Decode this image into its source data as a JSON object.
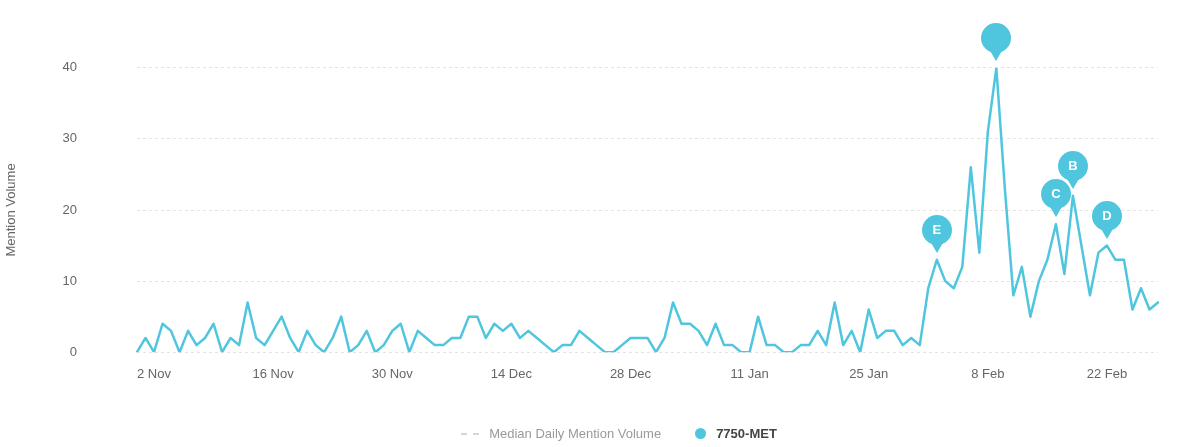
{
  "chart_data": {
    "type": "line",
    "ylabel": "Mention Volume",
    "legend": "bottom",
    "grid": "y",
    "line_style": "solid",
    "categories": [
      null,
      null,
      "2 Nov",
      null,
      null,
      null,
      null,
      null,
      null,
      null,
      null,
      null,
      null,
      null,
      null,
      null,
      "16 Nov",
      null,
      null,
      null,
      null,
      null,
      null,
      null,
      null,
      null,
      null,
      null,
      null,
      null,
      "30 Nov",
      null,
      null,
      null,
      null,
      null,
      null,
      null,
      null,
      null,
      null,
      null,
      null,
      null,
      "14 Dec",
      null,
      null,
      null,
      null,
      null,
      null,
      null,
      null,
      null,
      null,
      null,
      null,
      null,
      "28 Dec",
      null,
      null,
      null,
      null,
      null,
      null,
      null,
      null,
      null,
      null,
      null,
      null,
      null,
      "11 Jan",
      null,
      null,
      null,
      null,
      null,
      null,
      null,
      null,
      null,
      null,
      null,
      null,
      null,
      "25 Jan",
      null,
      null,
      null,
      null,
      null,
      null,
      null,
      null,
      null,
      null,
      null,
      null,
      null,
      "8 Feb",
      null,
      null,
      null,
      null,
      null,
      null,
      null,
      null,
      null,
      null,
      null,
      null,
      null,
      "22 Feb",
      null,
      null,
      null,
      null,
      null,
      null
    ],
    "ylim": [
      0,
      40
    ],
    "yticks": [
      0,
      10,
      20,
      30,
      40
    ],
    "series": [
      {
        "name": "Median Daily Mention Volume",
        "color": "#d6d6d6",
        "line_style": "dashed",
        "values": [
          null,
          null,
          null,
          null,
          null,
          null,
          null,
          null,
          null,
          null,
          null,
          null,
          null,
          null,
          null,
          null,
          null,
          null,
          null,
          null,
          null,
          null,
          null,
          null,
          null,
          null,
          null,
          null,
          null,
          null,
          null,
          null,
          null,
          null,
          null,
          null,
          null,
          null,
          null,
          null,
          null,
          null,
          null,
          null,
          null,
          null,
          null,
          null,
          null,
          null,
          null,
          null,
          null,
          null,
          null,
          null,
          null,
          null,
          null,
          null,
          null,
          null,
          null,
          null,
          null,
          null,
          null,
          null,
          null,
          null,
          null,
          null,
          null,
          null,
          null,
          null,
          null,
          null,
          null,
          null,
          null,
          null,
          null,
          null,
          null,
          null,
          null,
          null,
          null,
          null,
          null,
          null,
          null,
          null,
          null,
          null,
          null,
          null,
          null,
          null,
          null,
          null,
          null,
          null,
          null,
          null,
          null,
          null,
          null,
          null,
          null,
          null,
          null,
          null,
          null,
          null,
          null,
          null,
          null,
          null,
          null
        ]
      },
      {
        "name": "7750-MET",
        "color": "#4fc6de",
        "values": [
          0,
          2,
          0,
          4,
          3,
          0,
          3,
          1,
          2,
          4,
          0,
          2,
          1,
          7,
          2,
          1,
          3,
          5,
          2,
          0,
          3,
          1,
          0,
          2,
          5,
          0,
          1,
          3,
          0,
          1,
          3,
          4,
          0,
          3,
          2,
          1,
          1,
          2,
          2,
          5,
          5,
          2,
          4,
          3,
          4,
          2,
          3,
          2,
          1,
          0,
          1,
          1,
          3,
          2,
          1,
          0,
          0,
          1,
          2,
          2,
          2,
          0,
          2,
          7,
          4,
          4,
          3,
          1,
          4,
          1,
          1,
          0,
          0,
          5,
          1,
          1,
          0,
          0,
          1,
          1,
          3,
          1,
          7,
          1,
          3,
          0,
          6,
          2,
          3,
          3,
          1,
          2,
          1,
          9,
          13,
          10,
          9,
          12,
          26,
          14,
          31,
          40,
          23,
          8,
          12,
          5,
          10,
          13,
          18,
          11,
          22,
          15,
          8,
          14,
          15,
          13,
          13,
          6,
          9,
          6,
          7
        ]
      }
    ],
    "annotations": [
      {
        "text": "E",
        "y": 13
      },
      {
        "text": "C",
        "y": 18
      },
      {
        "text": "B",
        "y": 22
      },
      {
        "text": "D",
        "x": "22 Feb",
        "y": 15
      }
    ]
  }
}
